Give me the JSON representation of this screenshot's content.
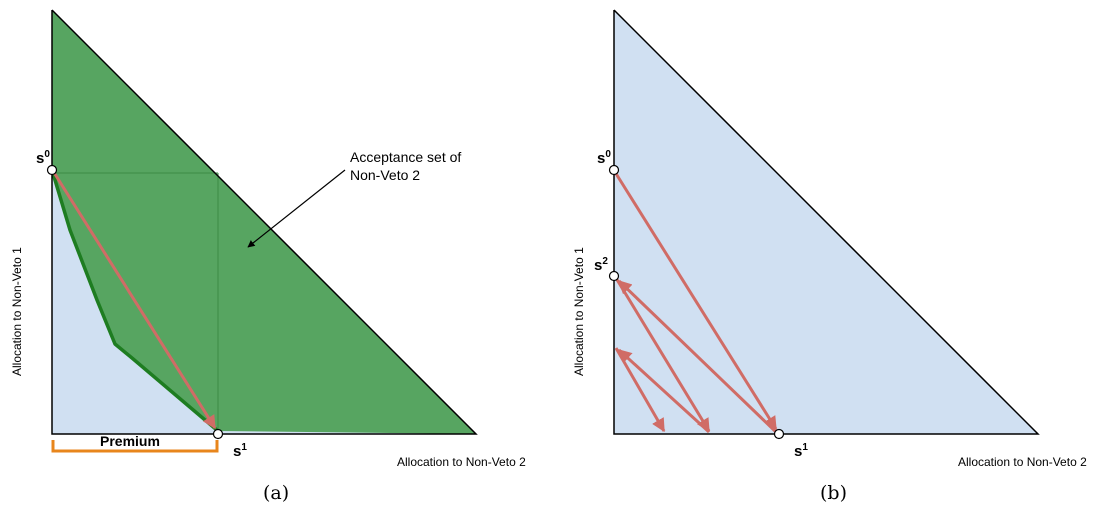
{
  "panel_a": {
    "caption": "(a)",
    "y_axis_label": "Allocation to Non-Veto 1",
    "x_axis_label": "Allocation to Non-Veto 2",
    "annotation_line1": "Acceptance set of",
    "annotation_line2": "Non-Veto 2",
    "premium_label": "Premium",
    "point_s0_base": "s",
    "point_s0_sup": "0",
    "point_s1_base": "s",
    "point_s1_sup": "1"
  },
  "panel_b": {
    "caption": "(b)",
    "y_axis_label": "Allocation to Non-Veto 1",
    "x_axis_label": "Allocation to Non-Veto 2",
    "point_s0_base": "s",
    "point_s0_sup": "0",
    "point_s2_base": "s",
    "point_s2_sup": "2",
    "point_s1_base": "s",
    "point_s1_sup": "1"
  },
  "colors": {
    "simplex_fill": "#d0e0f2",
    "acceptance_fill": "#57a561",
    "acceptance_stroke": "#1e7d21",
    "arrow": "#d06c66",
    "premium_bracket": "#e8861c"
  }
}
